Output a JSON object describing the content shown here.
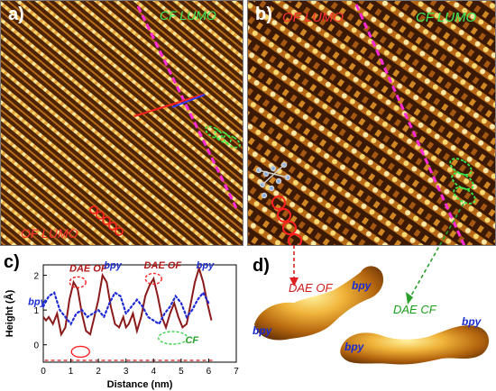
{
  "panels": {
    "a": {
      "label": "a)",
      "tag_top": "CF LUMO",
      "tag_bottom": "OF LUMO"
    },
    "b": {
      "label": "b)",
      "tag_left": "OF LUMO",
      "tag_right": "CF LUMO"
    },
    "c": {
      "label": "c)",
      "ann_dae_of_1": "DAE OF",
      "ann_dae_of_2": "DAE OF",
      "ann_bpy_1": "bpy",
      "ann_bpy_2": "bpy",
      "ann_bpy_3": "bpy",
      "ann_cf": "CF"
    },
    "d": {
      "label": "d)",
      "dae_of": "DAE OF",
      "dae_cf": "DAE CF",
      "bpy_1": "bpy",
      "bpy_2": "bpy",
      "bpy_3": "bpy",
      "bpy_4": "bpy"
    }
  },
  "chart_data": {
    "type": "line",
    "xlabel": "Distance (nm)",
    "ylabel": "Height (Å)",
    "xlim": [
      0,
      7
    ],
    "ylim": [
      -0.5,
      2.3
    ],
    "xticks": [
      "0",
      "1",
      "2",
      "3",
      "4",
      "5",
      "6",
      "7"
    ],
    "yticks": [
      "0",
      "1",
      "2"
    ],
    "series": [
      {
        "color": "#8b1a1a",
        "style": "solid",
        "x": [
          0.0,
          0.1,
          0.2,
          0.35,
          0.5,
          0.65,
          0.8,
          0.95,
          1.1,
          1.25,
          1.4,
          1.55,
          1.7,
          1.85,
          2.0,
          2.15,
          2.3,
          2.45,
          2.6,
          2.75,
          2.9,
          3.0,
          3.1,
          3.25,
          3.4,
          3.55,
          3.7,
          3.85,
          4.0,
          4.15,
          4.3,
          4.45,
          4.6,
          4.75,
          4.9,
          5.05,
          5.2,
          5.35,
          5.5,
          5.65,
          5.8,
          5.95,
          6.1
        ],
        "y": [
          0.8,
          0.7,
          0.8,
          0.6,
          0.9,
          0.3,
          0.5,
          1.3,
          1.8,
          1.6,
          0.9,
          0.4,
          0.3,
          0.8,
          1.3,
          2.0,
          1.8,
          1.1,
          0.6,
          0.5,
          0.8,
          0.5,
          0.6,
          0.9,
          0.4,
          0.8,
          1.4,
          1.7,
          1.9,
          1.4,
          0.8,
          0.5,
          0.9,
          1.2,
          0.8,
          0.5,
          0.6,
          1.2,
          1.8,
          2.2,
          1.8,
          1.2,
          0.7
        ]
      },
      {
        "color": "#1f2bd6",
        "style": "dotted",
        "x": [
          0.0,
          0.2,
          0.4,
          0.6,
          0.8,
          1.0,
          1.2,
          1.4,
          1.6,
          1.8,
          2.0,
          2.2,
          2.4,
          2.6,
          2.8,
          3.0,
          3.2,
          3.4,
          3.6,
          3.8,
          4.0,
          4.2,
          4.4,
          4.6,
          4.8,
          5.0,
          5.2,
          5.4,
          5.6,
          5.8,
          6.0
        ],
        "y": [
          1.1,
          1.4,
          1.5,
          1.0,
          0.8,
          0.6,
          0.9,
          1.0,
          0.8,
          0.9,
          1.0,
          0.8,
          1.2,
          1.5,
          1.4,
          0.9,
          1.1,
          1.3,
          1.1,
          0.8,
          0.7,
          0.6,
          0.9,
          1.1,
          1.4,
          1.2,
          0.8,
          1.0,
          1.3,
          1.5,
          1.2
        ]
      }
    ]
  }
}
